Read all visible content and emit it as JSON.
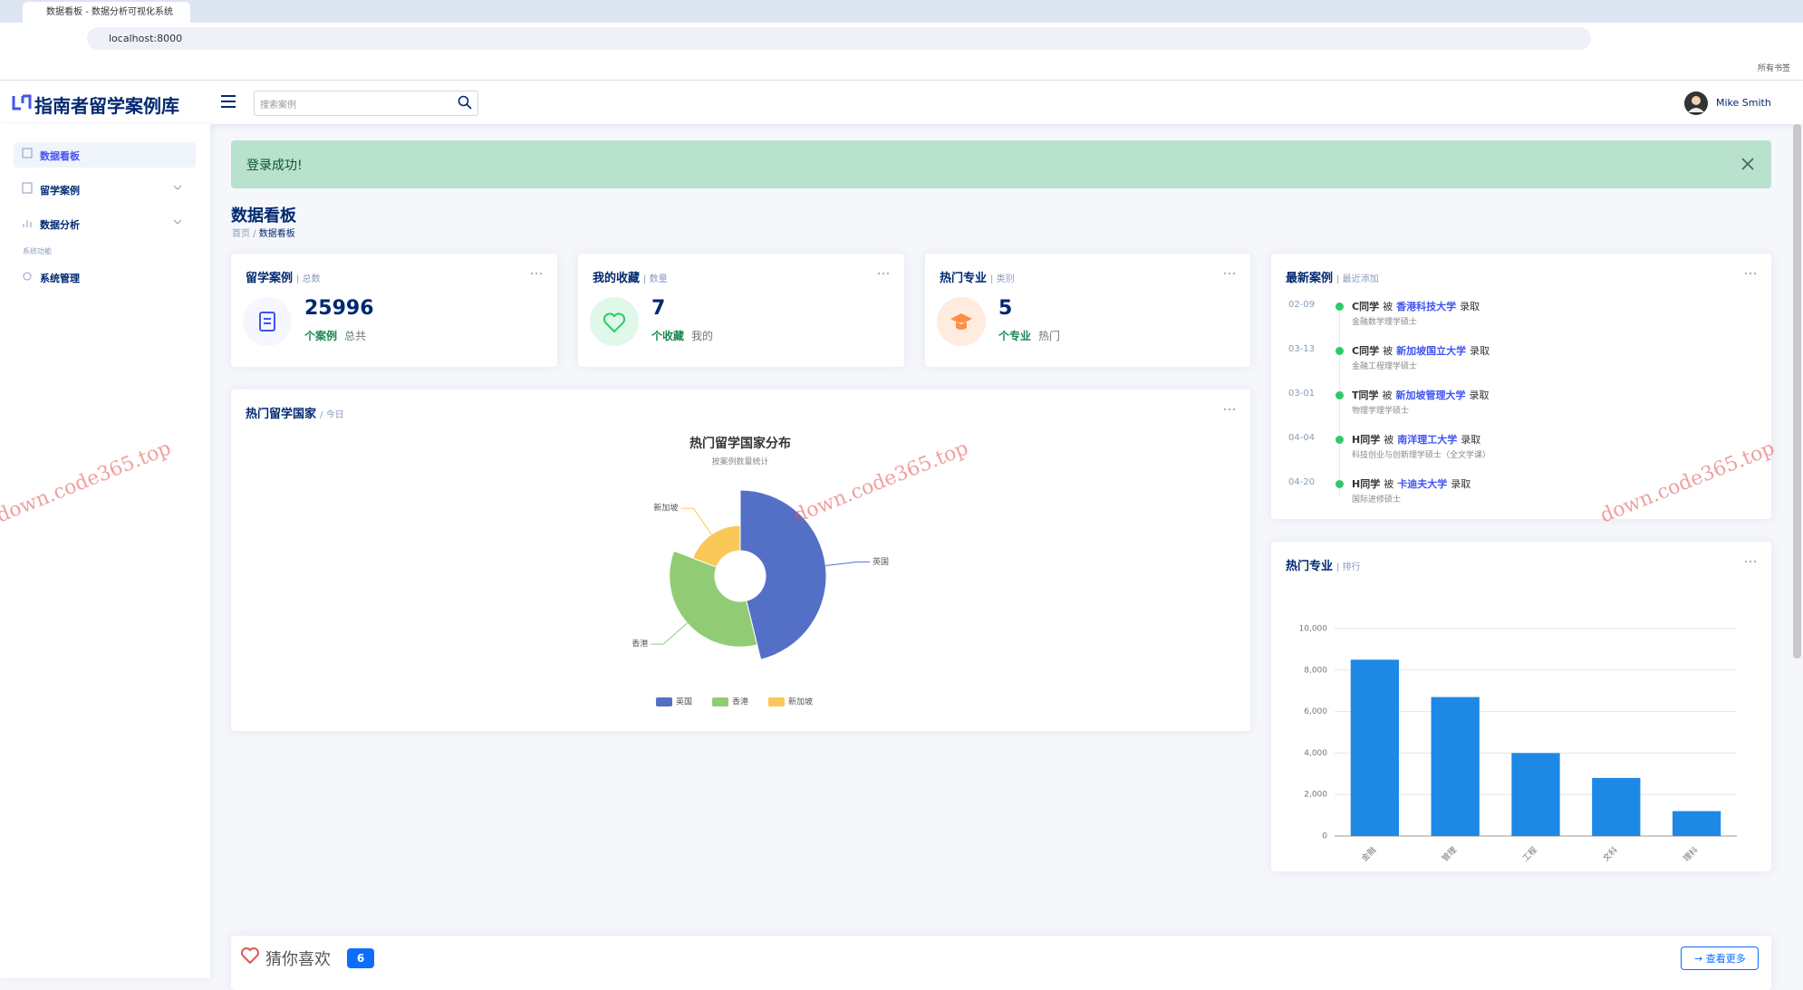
{
  "browser": {
    "tab_title": "数据看板 - 数据分析可视化系统",
    "url": "localhost:8000",
    "bookmarks": "所有书签"
  },
  "header": {
    "logo": "指南者留学案例库",
    "search_placeholder": "搜索案例",
    "user": "Mike Smith"
  },
  "sidebar": {
    "items": [
      "数据看板",
      "留学案例",
      "数据分析"
    ],
    "section": "系统功能",
    "admin": "系统管理"
  },
  "alert": "登录成功!",
  "page": {
    "title": "数据看板",
    "breadcrumb": [
      "首页",
      "数据看板"
    ]
  },
  "cards": [
    {
      "title": "留学案例",
      "tag": "| 总数",
      "value": 25996,
      "unit": "个案例",
      "note": "总共"
    },
    {
      "title": "我的收藏",
      "tag": "| 数量",
      "value": 7,
      "unit": "个收藏",
      "note": "我的"
    },
    {
      "title": "热门专业",
      "tag": "| 类别",
      "value": 5,
      "unit": "个专业",
      "note": "热门"
    }
  ],
  "latest": {
    "title": "最新案例",
    "tag": "| 最近添加",
    "items": [
      {
        "date": "02-09",
        "student": "C同学",
        "verb": "被",
        "school": "香港科技大学",
        "result": "录取",
        "program": "金融数学理学硕士"
      },
      {
        "date": "03-13",
        "student": "C同学",
        "verb": "被",
        "school": "新加坡国立大学",
        "result": "录取",
        "program": "金融工程理学硕士"
      },
      {
        "date": "03-01",
        "student": "T同学",
        "verb": "被",
        "school": "新加坡管理大学",
        "result": "录取",
        "program": "物理学理学硕士"
      },
      {
        "date": "04-04",
        "student": "H同学",
        "verb": "被",
        "school": "南洋理工大学",
        "result": "录取",
        "program": "科技创业与创新理学硕士（全文学课）"
      },
      {
        "date": "04-20",
        "student": "H同学",
        "verb": "被",
        "school": "卡迪夫大学",
        "result": "录取",
        "program": "国际进修硕士"
      }
    ]
  },
  "countries_panel": {
    "title": "热门留学国家",
    "tag": "/ 今日"
  },
  "majors_panel": {
    "title": "热门专业",
    "tag": "| 排行"
  },
  "recommend": {
    "title": "猜你喜欢",
    "count": 6,
    "more": "查看更多"
  },
  "watermark": "down.code365.top",
  "chart_data": [
    {
      "type": "rose",
      "title": "热门留学国家分布",
      "subtitle": "按案例数量统计",
      "categories": [
        "英国",
        "香港",
        "新加坡"
      ],
      "values": [
        12000,
        9000,
        5000
      ],
      "colors": [
        "#5470c6",
        "#91cc75",
        "#fac858"
      ],
      "legend": "bottom"
    },
    {
      "type": "bar",
      "categories": [
        "金融",
        "管理",
        "工程",
        "文科",
        "理科"
      ],
      "values": [
        8500,
        6700,
        4000,
        2800,
        1200
      ],
      "color": "#1e88e5",
      "ylim": [
        0,
        10000
      ],
      "yticks": [
        0,
        {
          "value": 2000,
          "label": "2,000"
        },
        {
          "value": 4000,
          "label": "4,000"
        },
        {
          "value": 6000,
          "label": "6,000"
        },
        {
          "value": 8000,
          "label": "8,000"
        },
        {
          "value": 10000,
          "label": "10,000"
        }
      ],
      "grid": true
    }
  ]
}
